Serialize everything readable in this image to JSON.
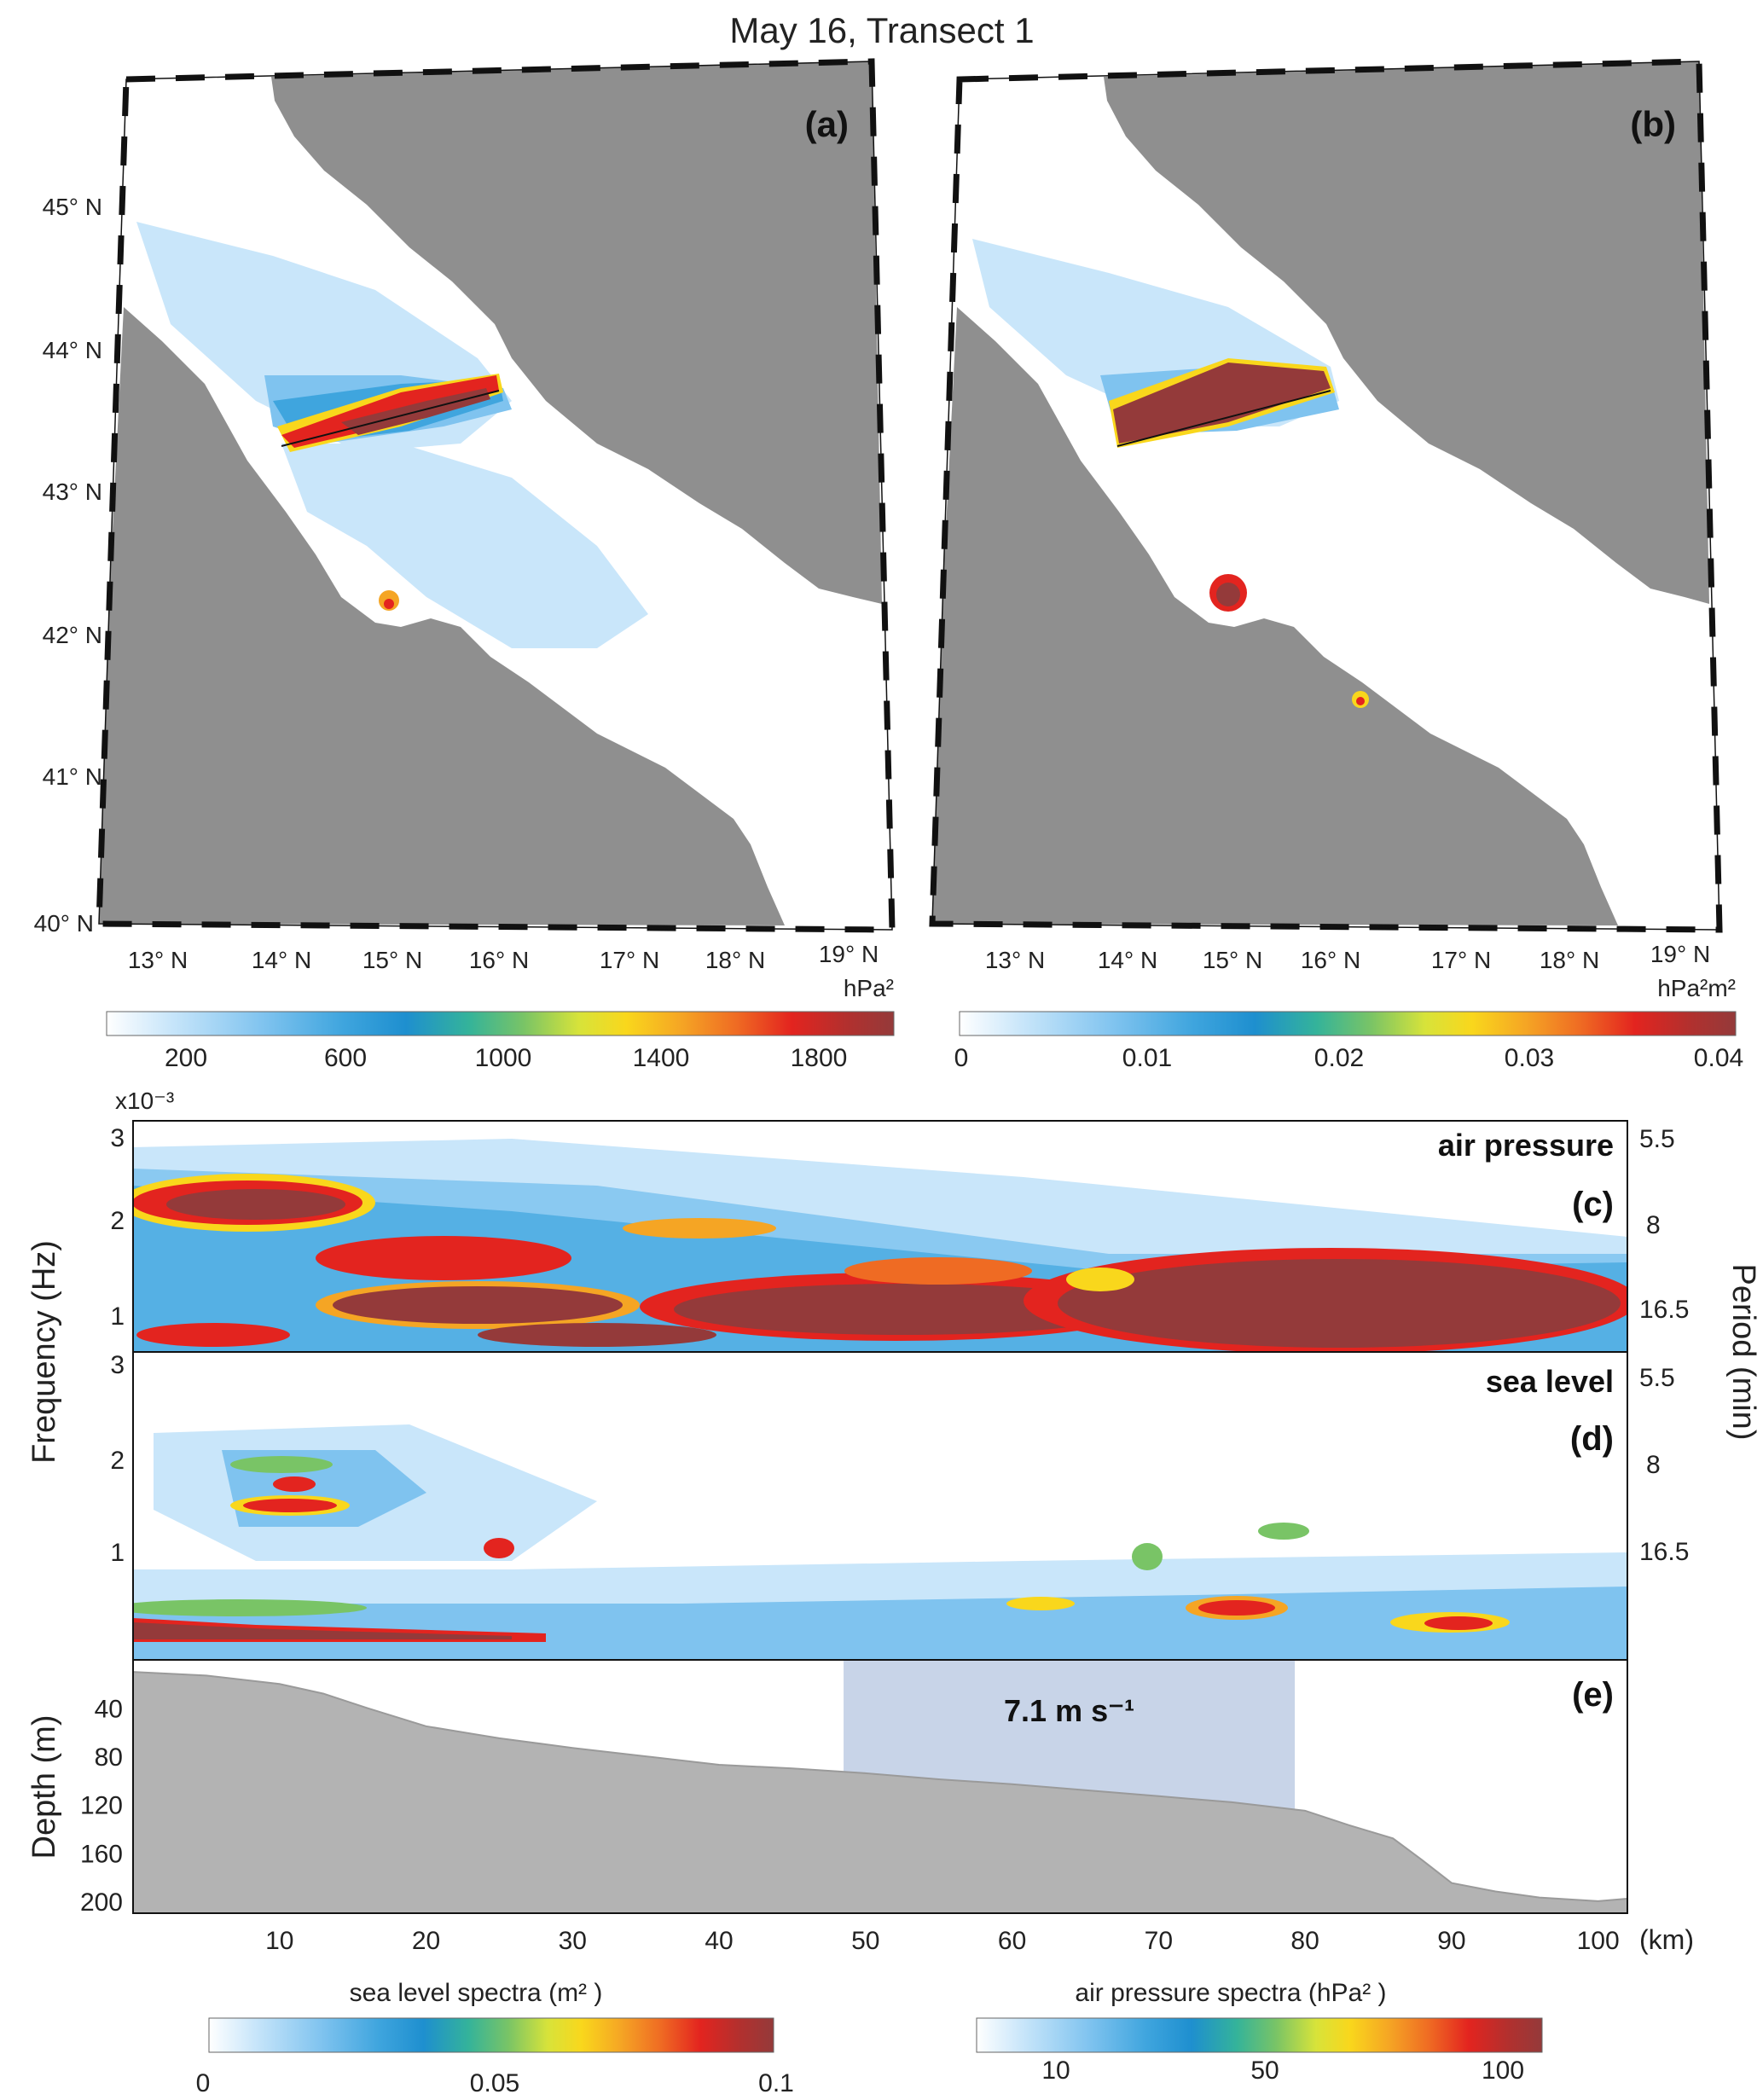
{
  "title": "May 16, Transect 1",
  "maps": [
    {
      "label": "(a)",
      "lat_ticks": [
        "45° N",
        "44° N",
        "43° N",
        "42° N",
        "41° N",
        "40° N"
      ],
      "lon_ticks": [
        "13° N",
        "14° N",
        "15° N",
        "16° N",
        "17° N",
        "18° N",
        "19° N"
      ],
      "colorbar": {
        "unit": "hPa²",
        "ticks": [
          "200",
          "600",
          "1000",
          "1400",
          "1800"
        ],
        "min": 0,
        "max": 1950
      }
    },
    {
      "label": "(b)",
      "lat_ticks": [],
      "lon_ticks": [
        "13° N",
        "14° N",
        "15° N",
        "16° N",
        "17° N",
        "18° N",
        "19° N"
      ],
      "colorbar": {
        "unit": "hPa²m²",
        "ticks": [
          "0",
          "0.01",
          "0.02",
          "0.03",
          "0.04"
        ],
        "min": 0,
        "max": 0.041
      }
    }
  ],
  "spectra": {
    "exponent_label": "x10⁻³",
    "ylabel": "Frequency (Hz)",
    "ylabel_right": "Period (min)",
    "freq_ticks": [
      "3",
      "2",
      "1"
    ],
    "period_ticks": [
      "5.5",
      "8",
      "16.5"
    ],
    "panels": [
      {
        "label": "(c)",
        "name": "air pressure"
      },
      {
        "label": "(d)",
        "name": "sea level"
      }
    ]
  },
  "chart_data": {
    "type": "area",
    "label": "(e)",
    "ylabel": "Depth (m)",
    "xlabel": "(km)",
    "x_ticks": [
      "10",
      "20",
      "30",
      "40",
      "50",
      "60",
      "70",
      "80",
      "90",
      "100"
    ],
    "y_ticks": [
      "40",
      "80",
      "120",
      "160",
      "200"
    ],
    "xlim": [
      0,
      102
    ],
    "ylim": [
      210,
      0
    ],
    "depth_profile": {
      "x": [
        0,
        5,
        10,
        13,
        16,
        20,
        25,
        30,
        35,
        40,
        45,
        50,
        55,
        60,
        65,
        70,
        75,
        80,
        83,
        86,
        88,
        90,
        93,
        96,
        100,
        102
      ],
      "y": [
        10,
        13,
        20,
        28,
        40,
        55,
        65,
        73,
        80,
        87,
        90,
        94,
        99,
        103,
        108,
        113,
        118,
        125,
        137,
        148,
        166,
        185,
        192,
        197,
        200,
        198
      ]
    },
    "highlight": {
      "x_start": 48.5,
      "x_end": 79.3,
      "label": "7.1 m s⁻¹",
      "color": "#c8d4e8"
    }
  },
  "bottom_colorbars": [
    {
      "title": "sea level spectra (m² )",
      "ticks": [
        "0",
        "0.05",
        "0.1"
      ],
      "min": 0,
      "max": 0.1
    },
    {
      "title": "air pressure spectra (hPa² )",
      "ticks": [
        "10",
        "50",
        "100"
      ],
      "min": 0,
      "max": 105
    }
  ],
  "colors": {
    "land": "#8f8f8f",
    "profile": "#b3b3b3",
    "scale": [
      "#ffffff",
      "#c9e6fa",
      "#7fc3ef",
      "#3fa5de",
      "#1e8fcf",
      "#34b39a",
      "#79c466",
      "#d7e33a",
      "#f9d71c",
      "#f5a524",
      "#ef6b23",
      "#e3241f",
      "#b2302e",
      "#943a3a"
    ]
  }
}
